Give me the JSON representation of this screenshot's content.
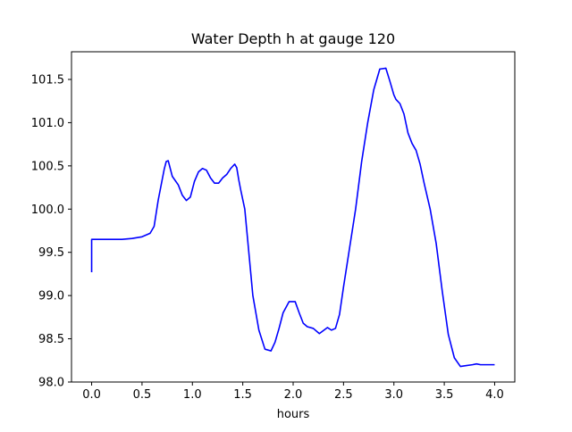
{
  "chart_data": {
    "type": "line",
    "title": "Water Depth h at gauge 120",
    "xlabel": "hours",
    "ylabel": "",
    "xlim": [
      -0.2,
      4.2
    ],
    "ylim": [
      98.0,
      101.82
    ],
    "xticks": [
      0.0,
      0.5,
      1.0,
      1.5,
      2.0,
      2.5,
      3.0,
      3.5,
      4.0
    ],
    "xtick_labels": [
      "0.0",
      "0.5",
      "1.0",
      "1.5",
      "2.0",
      "2.5",
      "3.0",
      "3.5",
      "4.0"
    ],
    "yticks": [
      98.0,
      98.5,
      99.0,
      99.5,
      100.0,
      100.5,
      101.0,
      101.5
    ],
    "ytick_labels": [
      "98.0",
      "98.5",
      "99.0",
      "99.5",
      "100.0",
      "100.5",
      "101.0",
      "101.5"
    ],
    "grid": false,
    "series": [
      {
        "color": "#0000ff",
        "x": [
          0.0,
          0.0,
          0.3,
          0.4,
          0.5,
          0.58,
          0.62,
          0.66,
          0.72,
          0.74,
          0.76,
          0.8,
          0.86,
          0.9,
          0.94,
          0.98,
          1.02,
          1.06,
          1.1,
          1.14,
          1.18,
          1.22,
          1.26,
          1.3,
          1.34,
          1.38,
          1.42,
          1.44,
          1.46,
          1.48,
          1.52,
          1.56,
          1.6,
          1.66,
          1.72,
          1.78,
          1.82,
          1.86,
          1.9,
          1.96,
          2.02,
          2.06,
          2.1,
          2.14,
          2.2,
          2.26,
          2.34,
          2.38,
          2.42,
          2.46,
          2.5,
          2.56,
          2.62,
          2.68,
          2.74,
          2.8,
          2.86,
          2.92,
          2.96,
          3.0,
          3.02,
          3.06,
          3.1,
          3.14,
          3.18,
          3.22,
          3.26,
          3.3,
          3.36,
          3.42,
          3.48,
          3.54,
          3.6,
          3.66,
          3.72,
          3.78,
          3.82,
          3.86,
          3.9,
          3.96,
          4.0
        ],
        "y": [
          99.27,
          99.65,
          99.65,
          99.66,
          99.68,
          99.72,
          99.8,
          100.1,
          100.46,
          100.55,
          100.56,
          100.38,
          100.28,
          100.16,
          100.1,
          100.14,
          100.32,
          100.43,
          100.47,
          100.45,
          100.36,
          100.3,
          100.3,
          100.36,
          100.4,
          100.47,
          100.52,
          100.48,
          100.34,
          100.22,
          100.0,
          99.5,
          99.0,
          98.6,
          98.38,
          98.36,
          98.46,
          98.62,
          98.8,
          98.93,
          98.93,
          98.8,
          98.68,
          98.64,
          98.62,
          98.56,
          98.63,
          98.6,
          98.62,
          98.78,
          99.1,
          99.55,
          100.0,
          100.55,
          101.0,
          101.38,
          101.62,
          101.63,
          101.48,
          101.32,
          101.27,
          101.22,
          101.1,
          100.88,
          100.76,
          100.68,
          100.52,
          100.3,
          100.0,
          99.6,
          99.05,
          98.55,
          98.28,
          98.18,
          98.19,
          98.2,
          98.21,
          98.2,
          98.2,
          98.2,
          98.2
        ]
      }
    ]
  }
}
